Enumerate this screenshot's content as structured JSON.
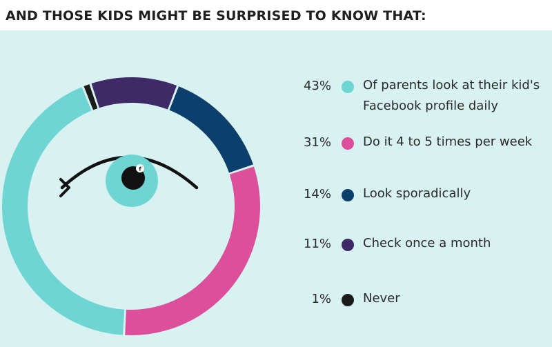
{
  "title": "AND THOSE KIDS MIGHT BE SURPRISED TO KNOW THAT:",
  "chart_data": {
    "type": "pie",
    "variant": "donut",
    "categories": [
      "Of parents look at their kid's Facebook profile daily",
      "Do it 4 to 5 times per week",
      "Look sporadically",
      "Check once a month",
      "Never"
    ],
    "values": [
      43,
      31,
      14,
      11,
      1
    ],
    "value_labels": [
      "43%",
      "31%",
      "14%",
      "11%",
      "1%"
    ],
    "colors": [
      "#6fd5d2",
      "#dc4f9b",
      "#0c3f6b",
      "#3d2a66",
      "#1b1b1b"
    ],
    "legend_placement": "right",
    "center_icon": "eye-icon"
  },
  "icons": {
    "pupil_badge": "f"
  }
}
